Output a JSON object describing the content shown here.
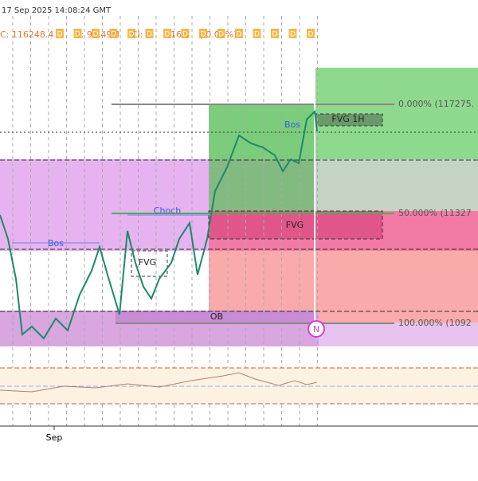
{
  "header": {
    "timestamp": "17 Sep 2025 14:08:24 GMT",
    "legend": [
      "C: 116248.4",
      "V: 95.49M",
      "Cl: 0",
      "-16.1",
      "(-0.01%)"
    ],
    "markers": [
      "D",
      "D",
      "D",
      "D",
      "D",
      "D",
      "D",
      "D",
      "D",
      "D",
      "D",
      "D",
      "D",
      "D",
      "D"
    ]
  },
  "labels": {
    "fib_top": "0.000% (117275.",
    "fib_mid": "50.000% (11327",
    "fib_bottom": "100.000% (1092",
    "fvg_1h": "FVG 1H",
    "bos_right": "Bos",
    "fvg_mid": "FVG",
    "choch": "Choch",
    "bos_left": "Bos",
    "fvg_left": "FVG",
    "ob": "OB",
    "badge": "N"
  },
  "x_axis": {
    "label": "Sep"
  }
}
